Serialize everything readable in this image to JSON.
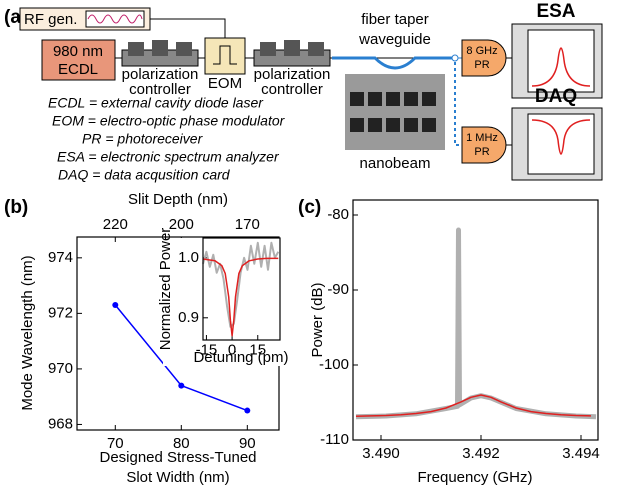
{
  "diagram": {
    "panel_label": "(a)",
    "rf_generator": "RF gen.",
    "laser": [
      "980 nm",
      "ECDL"
    ],
    "controllers": [
      [
        "polarization",
        "controller"
      ],
      [
        "polarization",
        "controller"
      ]
    ],
    "modulator": "EOM",
    "waveguide": [
      "fiber taper",
      "waveguide"
    ],
    "device": "nanobeam",
    "receivers": [
      [
        "8 GHz",
        "PR"
      ],
      [
        "1 MHz",
        "PR"
      ]
    ],
    "instruments": [
      "ESA",
      "DAQ"
    ],
    "abbreviations": [
      "ECDL = external cavity diode laser",
      "EOM = electro-optic phase modulator",
      "PR = photoreceiver",
      "ESA = electronic spectrum analyzer",
      "DAQ = data acqusition card"
    ]
  },
  "chart_data": [
    {
      "type": "line",
      "panel_label": "(b)",
      "xlabel": [
        "Designed Stress-Tuned",
        "Slot Width (nm)"
      ],
      "x2label": "Slit Depth (nm)",
      "ylabel": "Mode Wavelength (nm)",
      "x": [
        70,
        80,
        90
      ],
      "series": [
        {
          "color": "#0000ff",
          "values": [
            972.3,
            969.4,
            968.5
          ]
        }
      ],
      "xlim": [
        64.2,
        94.8
      ],
      "ylim": [
        967.8,
        974.75
      ],
      "xticks": [
        70,
        80,
        90
      ],
      "yticks": [
        968,
        970,
        972,
        974
      ],
      "x2ticks": [
        {
          "value": 70,
          "label": "220"
        },
        {
          "value": 80,
          "label": "200"
        },
        {
          "value": 90,
          "label": "170"
        }
      ]
    },
    {
      "type": "line",
      "xlabel": "Detuning (pm)",
      "ylabel": "Normalized Power",
      "series": [
        {
          "color": "#b0b0b0",
          "x": [
            -17,
            -15,
            -13,
            -11,
            -9,
            -7,
            -5,
            -3,
            -1,
            1,
            3,
            5,
            7,
            9,
            11,
            13,
            15,
            17,
            19,
            21,
            23,
            25,
            27
          ],
          "values": [
            0.99,
            1.01,
            0.985,
            1.005,
            0.975,
            0.99,
            0.965,
            0.92,
            0.885,
            0.89,
            0.93,
            0.975,
            1.0,
            0.98,
            1.02,
            0.99,
            1.025,
            0.985,
            1.02,
            0.98,
            1.025,
            1.0,
            1.01
          ]
        },
        {
          "color": "#e02020",
          "x": [
            -17,
            -10,
            -6,
            -4,
            -2,
            -1,
            0,
            1,
            2,
            4,
            6,
            10,
            15,
            20,
            27
          ],
          "values": [
            0.998,
            0.995,
            0.987,
            0.974,
            0.935,
            0.896,
            0.87,
            0.896,
            0.935,
            0.974,
            0.987,
            0.995,
            0.998,
            0.999,
            0.999
          ]
        }
      ],
      "xlim": [
        -17,
        28
      ],
      "ylim": [
        0.863,
        1.033
      ],
      "xticks": [
        -15,
        0,
        15
      ],
      "yticks": [
        {
          "value": 1,
          "label": "1.0"
        },
        0.9
      ]
    },
    {
      "type": "line",
      "panel_label": "(c)",
      "xlabel": "Frequency (GHz)",
      "ylabel": "Power (dB)",
      "series": [
        {
          "color": "#b0b0b0",
          "x": [
            3.4895,
            3.4901,
            3.4907,
            3.4913,
            3.49153,
            3.49155,
            3.49157,
            3.4918,
            3.492,
            3.4922,
            3.4927,
            3.4933,
            3.4939,
            3.4943
          ],
          "values": [
            -106.9,
            -106.8,
            -106.5,
            -105.8,
            -105.5,
            -82,
            -105.3,
            -104.4,
            -104.1,
            -104.4,
            -105.8,
            -106.5,
            -106.8,
            -106.9
          ]
        },
        {
          "color": "#e02020",
          "x": [
            3.4895,
            3.4898,
            3.4901,
            3.4904,
            3.4907,
            3.491,
            3.4913,
            3.4916,
            3.4918,
            3.492,
            3.4922,
            3.4924,
            3.4927,
            3.493,
            3.4933,
            3.4936,
            3.4939,
            3.4942
          ],
          "values": [
            -106.84,
            -106.79,
            -106.73,
            -106.63,
            -106.47,
            -106.21,
            -105.73,
            -104.92,
            -104.3,
            -104.0,
            -104.3,
            -104.92,
            -105.73,
            -106.21,
            -106.47,
            -106.63,
            -106.73,
            -106.79
          ]
        }
      ],
      "xlim": [
        3.48944,
        3.49434
      ],
      "ylim": [
        -110,
        -78
      ],
      "xticks": [
        {
          "value": 3.49,
          "label": "3.490"
        },
        {
          "value": 3.492,
          "label": "3.492"
        },
        {
          "value": 3.494,
          "label": "3.494"
        }
      ],
      "yticks": [
        -80,
        -90,
        -100,
        -110
      ]
    }
  ]
}
